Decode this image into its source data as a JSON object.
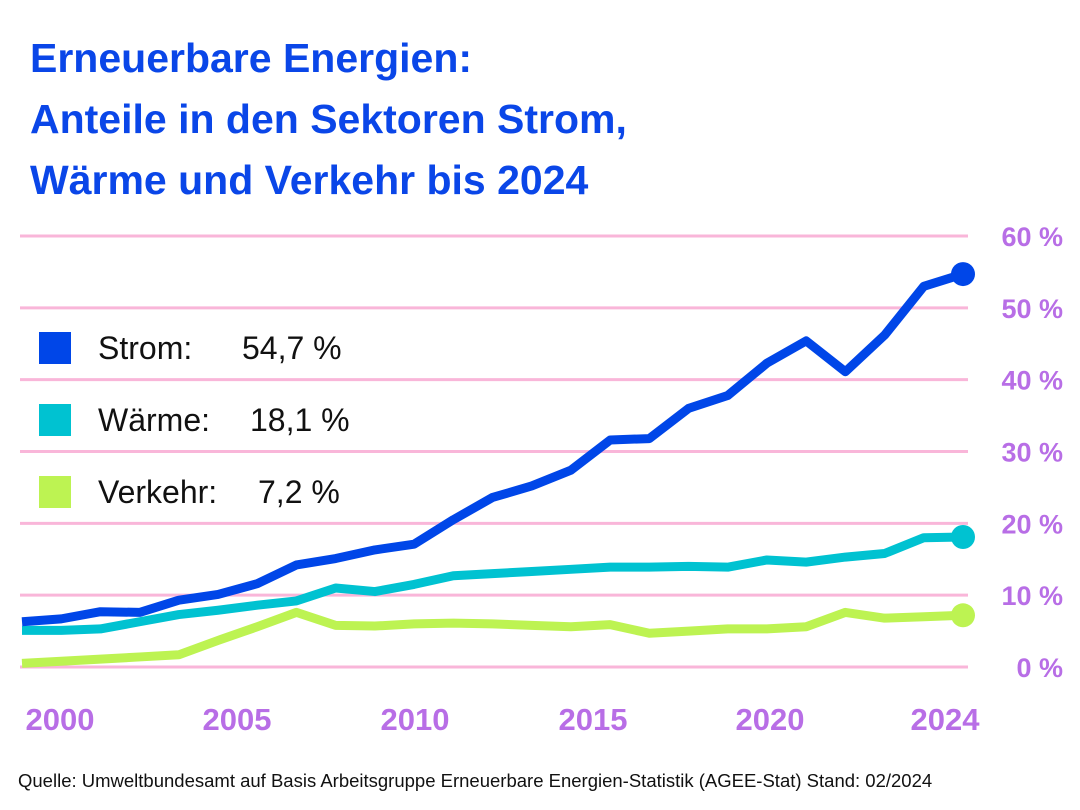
{
  "colors": {
    "title": "#0a46e8",
    "grid": "#f9b6d9",
    "axis_labels": "#b86ee6",
    "strom": "#0046e8",
    "waerme": "#00c2d1",
    "verkehr": "#bdf352"
  },
  "chart_data": {
    "type": "line",
    "title": [
      "Erneuerbare Energien:",
      "Anteile in den Sektoren Strom,",
      "Wärme und Verkehr bis 2024"
    ],
    "x": [
      2000,
      2001,
      2002,
      2003,
      2004,
      2005,
      2006,
      2007,
      2008,
      2009,
      2010,
      2011,
      2012,
      2013,
      2014,
      2015,
      2016,
      2017,
      2018,
      2019,
      2020,
      2021,
      2022,
      2023,
      2024
    ],
    "x_ticks": [
      2000,
      2005,
      2010,
      2015,
      2020,
      2024
    ],
    "x_tick_labels": [
      "2000",
      "2005",
      "2010",
      "2015",
      "2020",
      "2024"
    ],
    "xlim": [
      2000,
      2024
    ],
    "ylim": [
      0,
      60
    ],
    "y_ticks": [
      0,
      10,
      20,
      30,
      40,
      50,
      60
    ],
    "y_tick_labels": [
      "0 %",
      "10 %",
      "20 %",
      "30 %",
      "40 %",
      "50 %",
      "60 %"
    ],
    "y_axis_side": "right",
    "grid": "horizontal",
    "legend_placement": "left",
    "series": [
      {
        "key": "strom",
        "name": "Strom:",
        "final_label": "54,7 %",
        "values": [
          6.3,
          6.7,
          7.7,
          7.6,
          9.3,
          10.1,
          11.6,
          14.2,
          15.1,
          16.3,
          17.1,
          20.5,
          23.6,
          25.2,
          27.4,
          31.6,
          31.8,
          36.0,
          37.8,
          42.3,
          45.4,
          41.1,
          46.2,
          53.0,
          54.7
        ]
      },
      {
        "key": "waerme",
        "name": "Wärme:",
        "final_label": "18,1 %",
        "values": [
          5.1,
          5.1,
          5.3,
          6.3,
          7.3,
          7.9,
          8.6,
          9.2,
          11.0,
          10.5,
          11.5,
          12.7,
          13.0,
          13.3,
          13.6,
          13.9,
          13.9,
          14.0,
          13.9,
          14.9,
          14.6,
          15.3,
          15.8,
          18.0,
          18.1
        ]
      },
      {
        "key": "verkehr",
        "name": "Verkehr:",
        "final_label": "7,2 %",
        "values": [
          0.5,
          0.8,
          1.1,
          1.4,
          1.7,
          3.7,
          5.6,
          7.6,
          5.8,
          5.7,
          6.0,
          6.1,
          6.0,
          5.8,
          5.6,
          5.9,
          4.7,
          5.0,
          5.3,
          5.3,
          5.6,
          7.6,
          6.8,
          7.0,
          7.2
        ]
      }
    ]
  },
  "footer": "Quelle: Umweltbundesamt auf Basis Arbeitsgruppe Erneuerbare Energien-Statistik (AGEE-Stat) Stand: 02/2024"
}
